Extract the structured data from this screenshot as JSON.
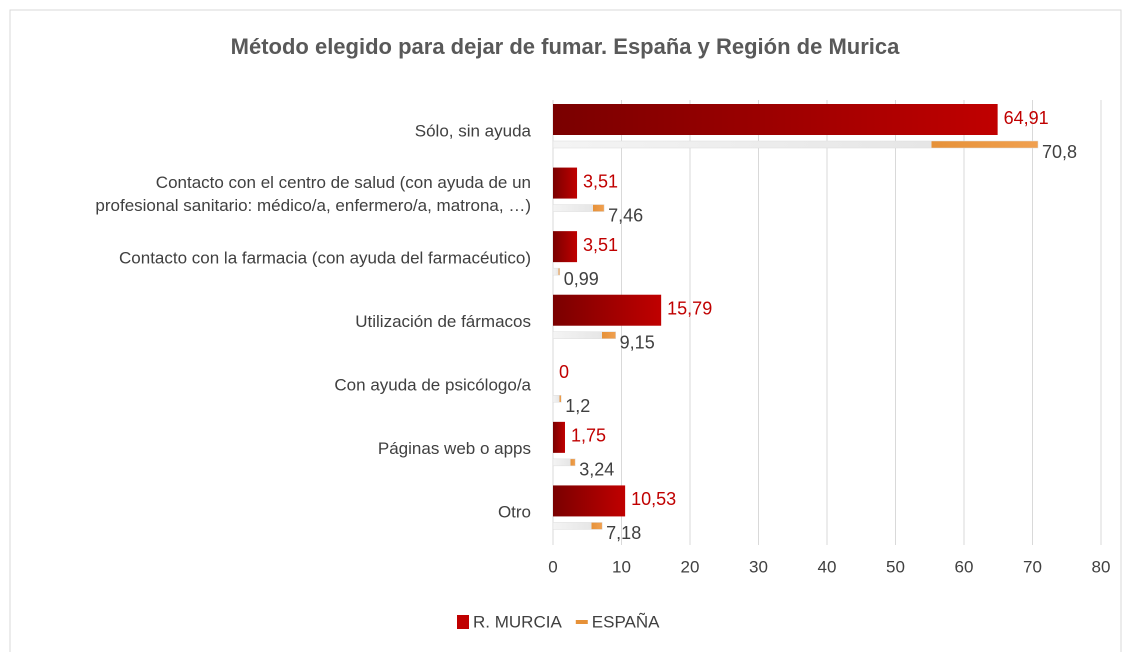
{
  "chart_data": {
    "type": "bar",
    "orientation": "horizontal",
    "title": "Método elegido para dejar de fumar. España y Región de Murica",
    "categories": [
      "Sólo, sin ayuda",
      "Contacto con el centro de salud (con ayuda de un\nprofesional sanitario: médico/a, enfermero/a, matrona, …)",
      "Contacto con la farmacia (con ayuda del farmacéutico)",
      "Utilización de fármacos",
      "Con ayuda de psicólogo/a",
      "Páginas web o apps",
      "Otro"
    ],
    "series": [
      {
        "name": "R. MURCIA",
        "color": "#c00000",
        "values": [
          64.91,
          3.51,
          3.51,
          15.79,
          0,
          1.75,
          10.53
        ],
        "value_labels": [
          "64,91",
          "3,51",
          "3,51",
          "15,79",
          "0",
          "1,75",
          "10,53"
        ]
      },
      {
        "name": "ESPAÑA",
        "color": "#e69138",
        "values": [
          70.8,
          7.46,
          0.99,
          9.15,
          1.2,
          3.24,
          7.18
        ],
        "value_labels": [
          "70,8",
          "7,46",
          "0,99",
          "9,15",
          "1,2",
          "3,24",
          "7,18"
        ]
      }
    ],
    "xlim": [
      0,
      80
    ],
    "xticks": [
      0,
      10,
      20,
      30,
      40,
      50,
      60,
      70,
      80
    ],
    "grid": true,
    "legend": "bottom"
  }
}
